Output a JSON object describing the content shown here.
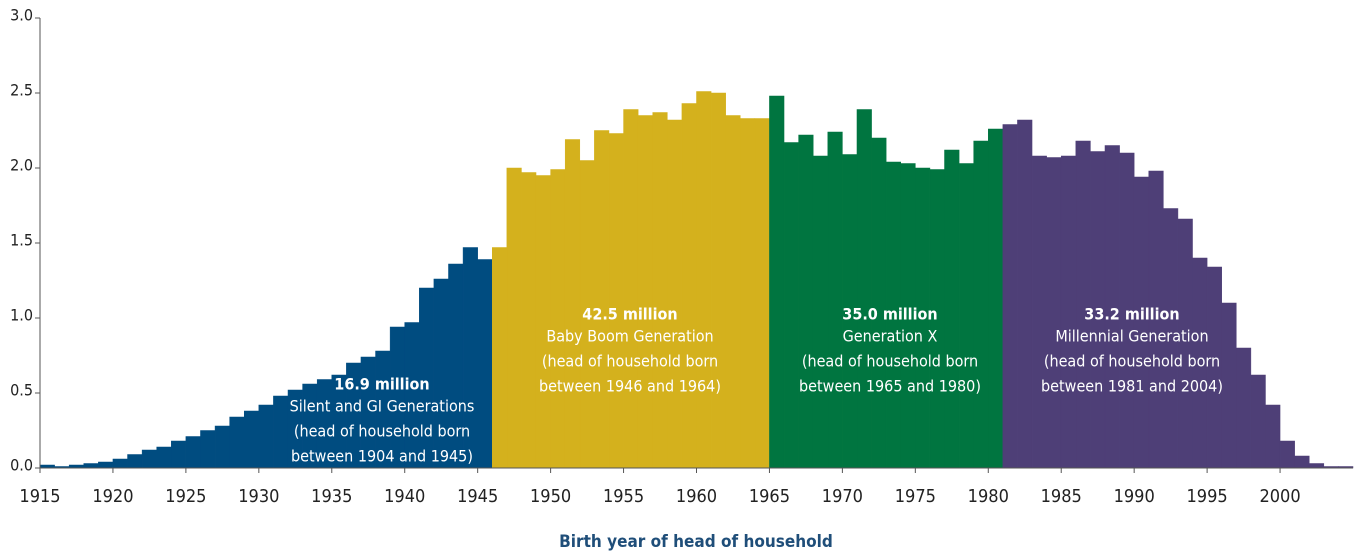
{
  "chart_data": {
    "type": "bar",
    "xlabel": "Birth year of head of household",
    "xlim": [
      1915,
      2005
    ],
    "xticks": [
      1915,
      1920,
      1925,
      1930,
      1935,
      1940,
      1945,
      1950,
      1955,
      1960,
      1965,
      1970,
      1975,
      1980,
      1985,
      1990,
      1995,
      2000
    ],
    "ylim": [
      0,
      3
    ],
    "yticks": [
      {
        "value": 0,
        "label": "0.0"
      },
      0.5,
      {
        "value": 1,
        "label": "1.0"
      },
      1.5,
      {
        "value": 2,
        "label": "2.0"
      },
      2.5,
      {
        "value": 3,
        "label": "3.0"
      }
    ],
    "series": [
      {
        "color": "#004c80",
        "x": [
          1915,
          1916,
          1917,
          1918,
          1919,
          1920,
          1921,
          1922,
          1923,
          1924,
          1925,
          1926,
          1927,
          1928,
          1929,
          1930,
          1931,
          1932,
          1933,
          1934,
          1935,
          1936,
          1937,
          1938,
          1939,
          1940,
          1941,
          1942,
          1943,
          1944,
          1945
        ],
        "values": [
          0.02,
          0.01,
          0.02,
          0.03,
          0.04,
          0.06,
          0.09,
          0.12,
          0.14,
          0.18,
          0.21,
          0.25,
          0.28,
          0.34,
          0.38,
          0.42,
          0.48,
          0.52,
          0.56,
          0.59,
          0.62,
          0.7,
          0.74,
          0.78,
          0.94,
          0.97,
          1.2,
          1.26,
          1.36,
          1.47,
          1.39
        ]
      },
      {
        "color": "#d4b11d",
        "x": [
          1946,
          1947,
          1948,
          1949,
          1950,
          1951,
          1952,
          1953,
          1954,
          1955,
          1956,
          1957,
          1958,
          1959,
          1960,
          1961,
          1962,
          1963,
          1964
        ],
        "values": [
          1.47,
          2.0,
          1.97,
          1.95,
          1.99,
          2.19,
          2.05,
          2.25,
          2.23,
          2.39,
          2.35,
          2.37,
          2.32,
          2.43,
          2.51,
          2.5,
          2.35,
          2.33,
          2.33
        ]
      },
      {
        "color": "#007540",
        "x": [
          1965,
          1966,
          1967,
          1968,
          1969,
          1970,
          1971,
          1972,
          1973,
          1974,
          1975,
          1976,
          1977,
          1978,
          1979,
          1980
        ],
        "values": [
          2.48,
          2.17,
          2.22,
          2.08,
          2.24,
          2.09,
          2.39,
          2.2,
          2.04,
          2.03,
          2.0,
          1.99,
          2.12,
          2.03,
          2.18,
          2.26
        ]
      },
      {
        "color": "#4e3f77",
        "x": [
          1981,
          1982,
          1983,
          1984,
          1985,
          1986,
          1987,
          1988,
          1989,
          1990,
          1991,
          1992,
          1993,
          1994,
          1995,
          1996,
          1997,
          1998,
          1999,
          2000,
          2001,
          2002,
          2003,
          2004
        ],
        "values": [
          2.29,
          2.32,
          2.08,
          2.07,
          2.08,
          2.18,
          2.11,
          2.15,
          2.1,
          1.94,
          1.98,
          1.73,
          1.66,
          1.4,
          1.34,
          1.1,
          0.8,
          0.62,
          0.42,
          0.18,
          0.08,
          0.03,
          0.01,
          0.01
        ]
      }
    ],
    "annotations": [
      {
        "title": "16.9 million",
        "lines": [
          "Silent and GI Generations",
          "(head of household born",
          "between 1904 and 1945)"
        ]
      },
      {
        "title": "42.5 million",
        "lines": [
          "Baby Boom Generation",
          "(head of household born",
          "between 1946 and 1964)"
        ]
      },
      {
        "title": "35.0 million",
        "lines": [
          "Generation X",
          "(head of household born",
          "between 1965 and 1980)"
        ]
      },
      {
        "title": "33.2 million",
        "lines": [
          "Millennial Generation",
          "(head of household born",
          "between 1981 and 2004)"
        ]
      }
    ]
  }
}
